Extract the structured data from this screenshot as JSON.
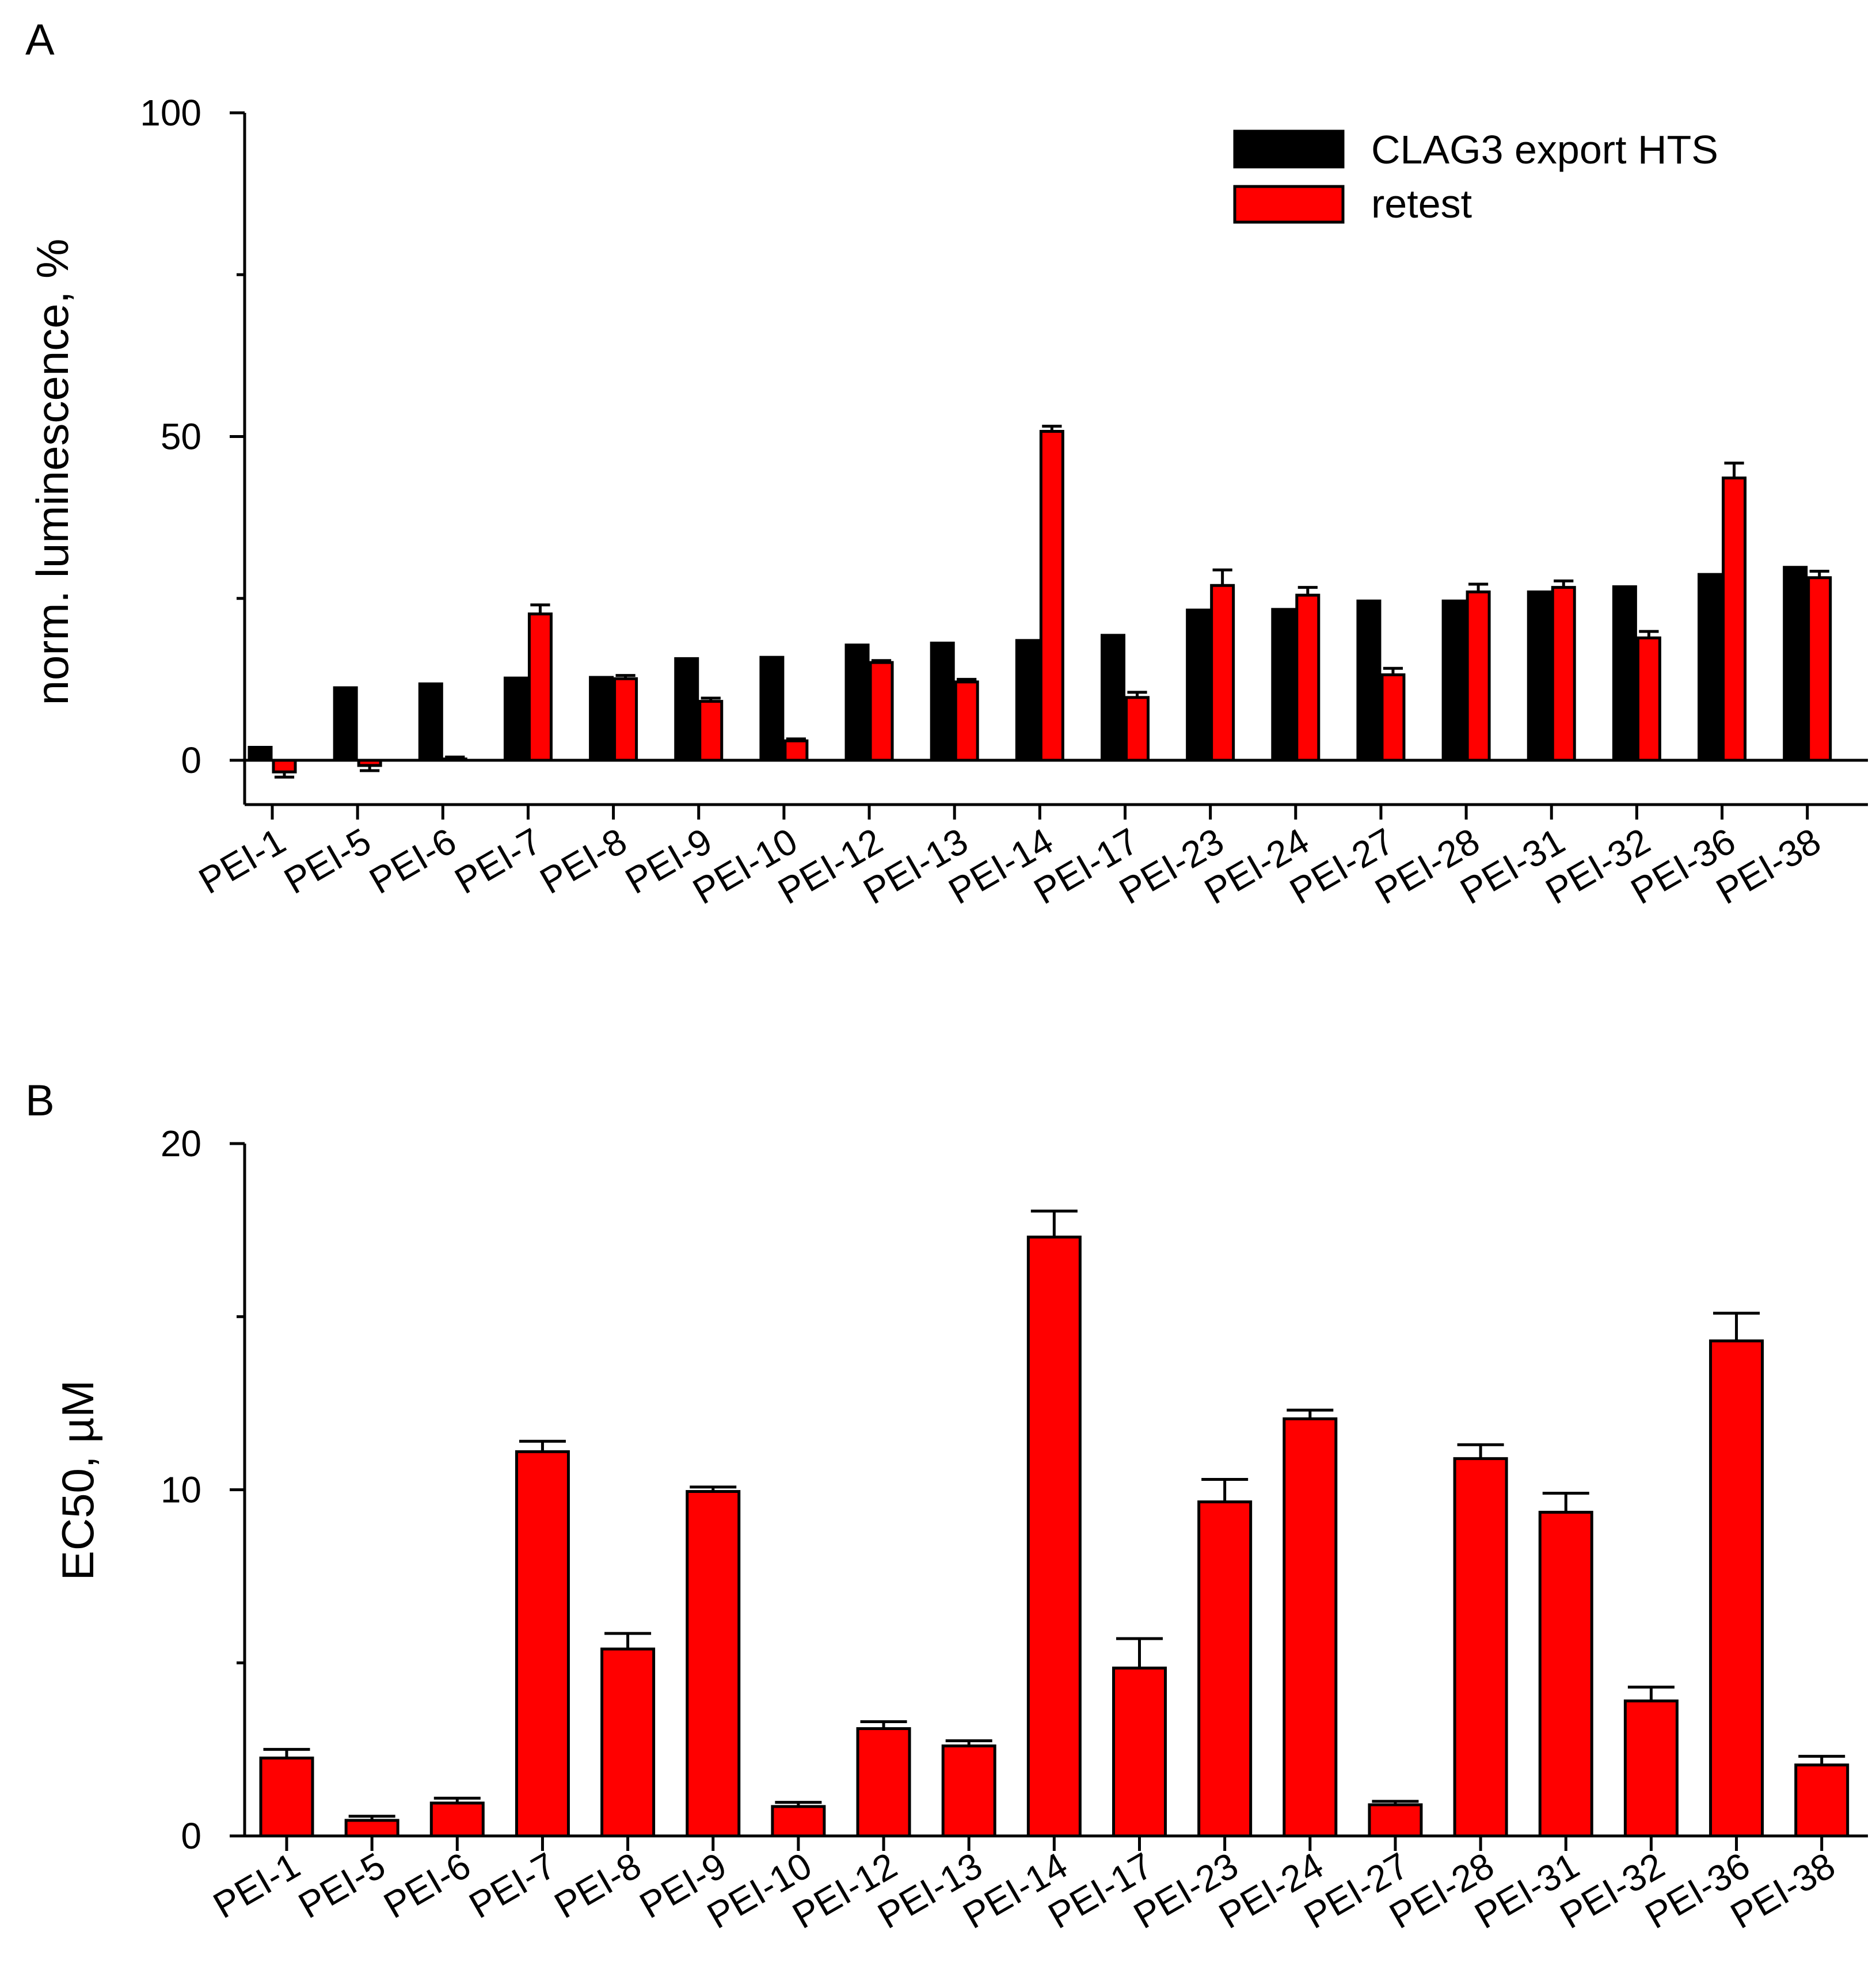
{
  "colors": {
    "hts": "#000000",
    "retest": "#ff0000"
  },
  "chart_data": [
    {
      "panel": "A",
      "type": "bar",
      "title": "",
      "xlabel": "",
      "ylabel": "norm. luminescence, %",
      "ylim": [
        -7,
        100
      ],
      "yticks": [
        0,
        50,
        100
      ],
      "legend": {
        "placement": "top-right",
        "entries": [
          "CLAG3 export HTS",
          "retest"
        ]
      },
      "categories": [
        "PEI-1",
        "PEI-5",
        "PEI-6",
        "PEI-7",
        "PEI-8",
        "PEI-9",
        "PEI-10",
        "PEI-12",
        "PEI-13",
        "PEI-14",
        "PEI-17",
        "PEI-23",
        "PEI-24",
        "PEI-27",
        "PEI-28",
        "PEI-31",
        "PEI-32",
        "PEI-36",
        "PEI-38"
      ],
      "series": [
        {
          "name": "CLAG3 export HTS",
          "color": "#000000",
          "values": [
            2.0,
            11.2,
            11.8,
            12.7,
            12.8,
            15.7,
            15.9,
            17.8,
            18.1,
            18.5,
            19.3,
            23.2,
            23.3,
            24.6,
            24.6,
            26.0,
            26.8,
            28.7,
            29.8
          ],
          "errors": null
        },
        {
          "name": "retest",
          "color": "#ff0000",
          "values": [
            -1.8,
            -0.8,
            0.2,
            22.6,
            12.6,
            9.1,
            3.0,
            15.1,
            12.1,
            50.8,
            9.7,
            27.0,
            25.5,
            13.2,
            26.0,
            26.7,
            18.9,
            43.6,
            28.2
          ],
          "errors": [
            0.8,
            0.8,
            0.3,
            1.4,
            0.5,
            0.5,
            0.3,
            0.3,
            0.4,
            0.8,
            0.8,
            2.4,
            1.2,
            1.0,
            1.2,
            1.0,
            1.0,
            2.3,
            1.0
          ]
        }
      ]
    },
    {
      "panel": "B",
      "type": "bar",
      "title": "",
      "xlabel": "",
      "ylabel": "EC50, µM",
      "ylim": [
        0,
        20
      ],
      "yticks": [
        0,
        10,
        20
      ],
      "categories": [
        "PEI-1",
        "PEI-5",
        "PEI-6",
        "PEI-7",
        "PEI-8",
        "PEI-9",
        "PEI-10",
        "PEI-12",
        "PEI-13",
        "PEI-14",
        "PEI-17",
        "PEI-23",
        "PEI-24",
        "PEI-27",
        "PEI-28",
        "PEI-31",
        "PEI-32",
        "PEI-36",
        "PEI-38"
      ],
      "series": [
        {
          "name": "EC50",
          "color": "#ff0000",
          "values": [
            2.25,
            0.45,
            0.95,
            11.1,
            5.4,
            9.95,
            0.85,
            3.1,
            2.6,
            17.3,
            4.85,
            9.65,
            12.05,
            0.9,
            10.9,
            9.35,
            3.9,
            14.3,
            2.05
          ],
          "errors": [
            0.25,
            0.12,
            0.14,
            0.3,
            0.45,
            0.13,
            0.12,
            0.2,
            0.15,
            0.75,
            0.85,
            0.65,
            0.25,
            0.1,
            0.4,
            0.55,
            0.4,
            0.8,
            0.25
          ]
        }
      ]
    }
  ]
}
